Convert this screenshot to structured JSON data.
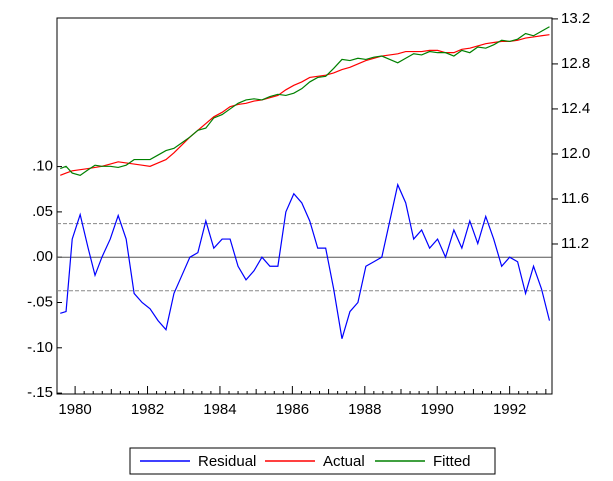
{
  "chart_data": {
    "type": "line",
    "x": [
      1979.59,
      1979.75,
      1979.92,
      1980.14,
      1980.36,
      1980.55,
      1980.74,
      1980.97,
      1981.19,
      1981.41,
      1981.63,
      1981.85,
      1982.07,
      1982.29,
      1982.51,
      1982.73,
      1982.95,
      1983.17,
      1983.39,
      1983.61,
      1983.83,
      1984.06,
      1984.28,
      1984.5,
      1984.72,
      1984.94,
      1985.16,
      1985.38,
      1985.6,
      1985.82,
      1986.04,
      1986.26,
      1986.48,
      1986.7,
      1986.92,
      1987.14,
      1987.37,
      1987.59,
      1987.81,
      1988.03,
      1988.25,
      1988.47,
      1988.69,
      1988.91,
      1989.13,
      1989.35,
      1989.57,
      1989.79,
      1990.01,
      1990.23,
      1990.46,
      1990.68,
      1990.9,
      1991.12,
      1991.34,
      1991.56,
      1991.78,
      1992.0,
      1992.22,
      1992.44,
      1992.66,
      1992.88,
      1993.1
    ],
    "series": [
      {
        "name": "Residual",
        "color": "#0000ff",
        "values": [
          -0.062,
          -0.06,
          0.02,
          0.047,
          0.01,
          -0.02,
          0.0,
          0.02,
          0.046,
          0.02,
          -0.04,
          -0.05,
          -0.057,
          -0.07,
          -0.08,
          -0.04,
          -0.02,
          0.0,
          0.005,
          0.04,
          0.01,
          0.02,
          0.02,
          -0.01,
          -0.025,
          -0.015,
          0.0,
          -0.01,
          -0.01,
          0.05,
          0.07,
          0.06,
          0.04,
          0.01,
          0.01,
          -0.035,
          -0.09,
          -0.06,
          -0.05,
          -0.01,
          -0.005,
          0.0,
          0.04,
          0.08,
          0.06,
          0.02,
          0.03,
          0.01,
          0.02,
          0.0,
          0.03,
          0.01,
          0.04,
          0.015,
          0.045,
          0.02,
          -0.01,
          0.0,
          -0.005,
          -0.04,
          -0.01,
          -0.035,
          -0.07
        ]
      },
      {
        "name": "Actual",
        "color": "#ff0000",
        "axis": "y2",
        "values": [
          11.81,
          11.83,
          11.85,
          11.86,
          11.87,
          11.88,
          11.89,
          11.91,
          11.93,
          11.92,
          11.91,
          11.9,
          11.89,
          11.92,
          11.95,
          12.01,
          12.08,
          12.15,
          12.21,
          12.27,
          12.33,
          12.37,
          12.42,
          12.44,
          12.45,
          12.47,
          12.48,
          12.5,
          12.52,
          12.57,
          12.61,
          12.64,
          12.68,
          12.69,
          12.7,
          12.72,
          12.75,
          12.77,
          12.8,
          12.83,
          12.85,
          12.87,
          12.88,
          12.89,
          12.91,
          12.91,
          12.91,
          12.92,
          12.92,
          12.9,
          12.9,
          12.93,
          12.94,
          12.96,
          12.98,
          12.99,
          13.0,
          13.0,
          13.01,
          13.03,
          13.04,
          13.05,
          13.06
        ]
      },
      {
        "name": "Fitted",
        "color": "#008000",
        "axis": "y2",
        "values": [
          11.87,
          11.89,
          11.83,
          11.81,
          11.86,
          11.9,
          11.89,
          11.89,
          11.88,
          11.9,
          11.95,
          11.95,
          11.95,
          11.99,
          12.03,
          12.05,
          12.1,
          12.15,
          12.21,
          12.23,
          12.32,
          12.35,
          12.4,
          12.45,
          12.48,
          12.49,
          12.48,
          12.51,
          12.53,
          12.52,
          12.54,
          12.58,
          12.64,
          12.68,
          12.69,
          12.76,
          12.84,
          12.83,
          12.85,
          12.84,
          12.86,
          12.87,
          12.84,
          12.81,
          12.85,
          12.89,
          12.88,
          12.91,
          12.9,
          12.9,
          12.87,
          12.92,
          12.9,
          12.95,
          12.94,
          12.97,
          13.01,
          13.0,
          13.02,
          13.07,
          13.05,
          13.09,
          13.13
        ]
      }
    ],
    "xlim": [
      1979.5,
      1993.17
    ],
    "xticks": [
      1980,
      1982,
      1984,
      1986,
      1988,
      1990,
      1992
    ],
    "xminor_ticks": [
      1981,
      1983,
      1985,
      1987,
      1989,
      1991,
      1993
    ],
    "ylim": [
      -0.151,
      0.264
    ],
    "yticks": [
      {
        "value": 0.1,
        "label": ".10"
      },
      {
        "value": 0.05,
        "label": ".05"
      },
      {
        "value": 0,
        "label": ".00"
      },
      {
        "value": -0.05,
        "label": "-.05"
      },
      {
        "value": -0.1,
        "label": "-.10"
      },
      {
        "value": -0.15,
        "label": "-.15"
      }
    ],
    "y2lim": [
      9.867,
      13.208
    ],
    "y2ticks": [
      {
        "value": 11.2,
        "label": "11.2"
      },
      {
        "value": 11.6,
        "label": "11.6"
      },
      {
        "value": 12,
        "label": "12.0"
      },
      {
        "value": 12.4,
        "label": "12.4"
      },
      {
        "value": 12.8,
        "label": "12.8"
      },
      {
        "value": 13.2,
        "label": "13.2"
      }
    ],
    "zero_line": 0,
    "reference_lines": [
      0.037,
      -0.037
    ]
  }
}
